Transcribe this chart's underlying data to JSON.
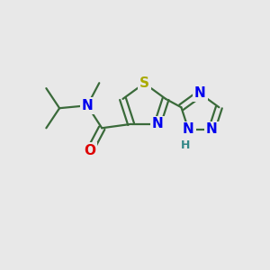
{
  "bg_color": "#e8e8e8",
  "bond_color": "#3a6a3a",
  "bond_width": 1.6,
  "dbo": 0.12,
  "atom_colors": {
    "N": "#0000ee",
    "O": "#dd0000",
    "S": "#aaaa00",
    "H": "#338888",
    "C": "#3a6a3a"
  },
  "font_size_atom": 11,
  "font_size_H": 9
}
